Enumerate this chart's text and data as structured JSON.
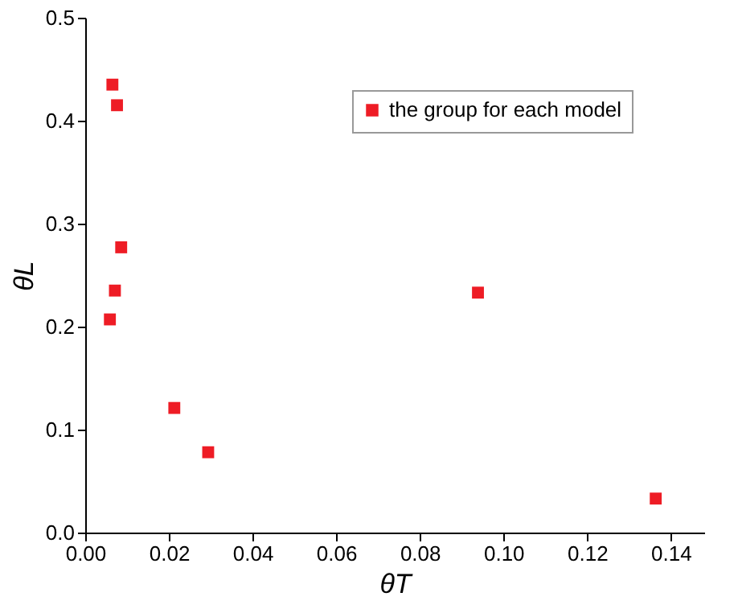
{
  "chart_data": {
    "type": "scatter",
    "xlabel": "θT",
    "ylabel": "θL",
    "x": [
      0.0065,
      0.0076,
      0.0086,
      0.0071,
      0.0059,
      0.0213,
      0.0294,
      0.0939,
      0.1364
    ],
    "series": [
      {
        "name": "the group for each model",
        "color": "#ee1c25",
        "values": [
          0.435,
          0.415,
          0.277,
          0.235,
          0.207,
          0.121,
          0.078,
          0.233,
          0.033
        ]
      }
    ],
    "xlim": [
      0,
      0.148
    ],
    "xticks": [
      {
        "value": 0,
        "label": "0.00"
      },
      {
        "value": 0.02,
        "label": "0.02"
      },
      {
        "value": 0.04,
        "label": "0.04"
      },
      {
        "value": 0.06,
        "label": "0.06"
      },
      {
        "value": 0.08,
        "label": "0.08"
      },
      {
        "value": 0.1,
        "label": "0.10"
      },
      {
        "value": 0.12,
        "label": "0.12"
      },
      {
        "value": 0.14,
        "label": "0.14"
      }
    ],
    "ylim": [
      0,
      0.5
    ],
    "yticks": [
      {
        "value": 0,
        "label": "0.0"
      },
      0.1,
      0.2,
      0.3,
      0.4,
      0.5
    ],
    "marker": "square",
    "grid": false,
    "legend": "top right"
  }
}
